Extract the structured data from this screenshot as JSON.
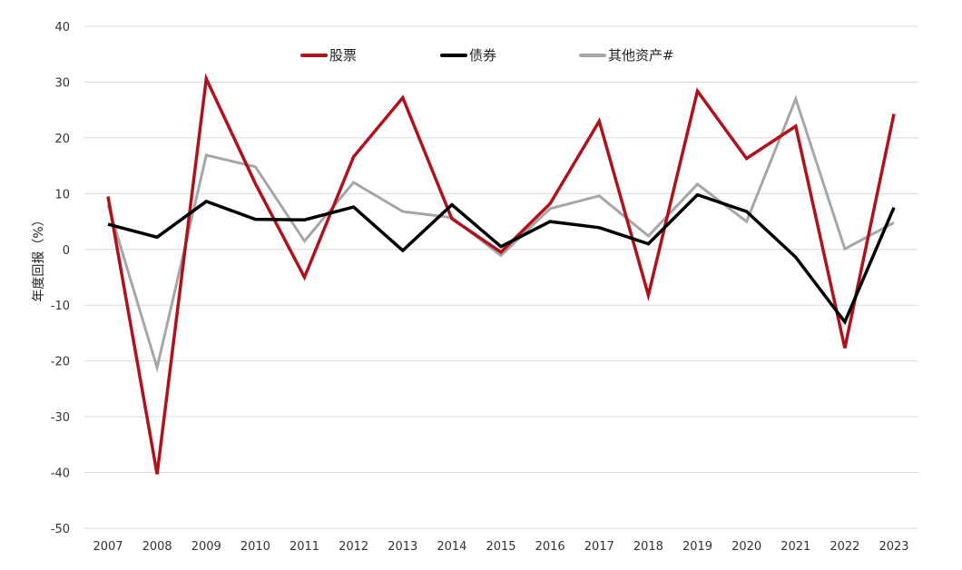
{
  "chart_data": {
    "type": "line",
    "title": "",
    "xlabel": "",
    "ylabel": "年度回报（%）",
    "categories": [
      "2007",
      "2008",
      "2009",
      "2010",
      "2011",
      "2012",
      "2013",
      "2014",
      "2015",
      "2016",
      "2017",
      "2018",
      "2019",
      "2020",
      "2021",
      "2022",
      "2023"
    ],
    "ylim": [
      -50,
      40
    ],
    "yticks": [
      40,
      30,
      20,
      10,
      0,
      -10,
      -20,
      -30,
      -40,
      -50
    ],
    "grid": true,
    "legend_position": "top",
    "series": [
      {
        "name": "股票",
        "color": "#b0121b",
        "values": [
          9.5,
          -40.3,
          30.6,
          11.8,
          -5.0,
          16.6,
          27.2,
          5.5,
          -0.5,
          8.2,
          23.0,
          -8.2,
          28.4,
          16.3,
          22.1,
          -17.7,
          24.3
        ]
      },
      {
        "name": "债券",
        "color": "#000000",
        "values": [
          4.5,
          2.2,
          8.6,
          5.4,
          5.3,
          7.6,
          -0.2,
          8.0,
          0.5,
          5.0,
          3.9,
          1.0,
          9.8,
          6.8,
          -1.4,
          -13.0,
          7.5
        ]
      },
      {
        "name": "其他资产#",
        "color": "#a6a6a6",
        "values": [
          8.0,
          -21.2,
          16.9,
          14.8,
          1.5,
          12.0,
          6.8,
          5.7,
          -1.1,
          7.3,
          9.6,
          2.4,
          11.7,
          5.0,
          27.0,
          0.1,
          4.8
        ]
      }
    ]
  }
}
